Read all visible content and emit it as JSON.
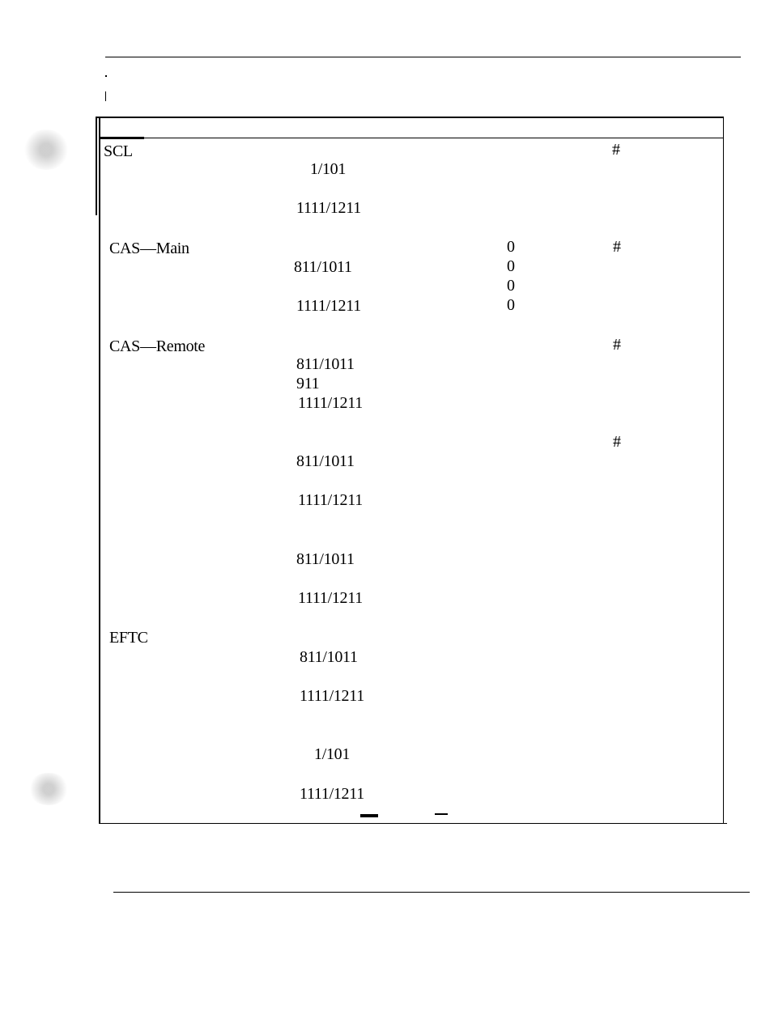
{
  "table": {
    "rows": [
      {
        "label": "SCL",
        "values": [
          "1/101",
          "1111/1211"
        ],
        "zeros": [],
        "hash": "#"
      },
      {
        "label": "CAS—Main",
        "values": [
          "811/1011",
          "1111/1211"
        ],
        "zeros": [
          "0",
          "0",
          "0",
          "0"
        ],
        "hash": "#"
      },
      {
        "label": "CAS—Remote",
        "values": [
          "811/1011",
          "911",
          "1111/1211"
        ],
        "zeros": [],
        "hash": "#"
      },
      {
        "label": "",
        "values": [
          "811/1011",
          "1111/1211"
        ],
        "zeros": [],
        "hash": "#"
      },
      {
        "label": "",
        "values": [
          "811/1011",
          "1111/1211"
        ],
        "zeros": [],
        "hash": ""
      },
      {
        "label": "EFTC",
        "values": [
          "811/1011",
          "1111/1211"
        ],
        "zeros": [],
        "hash": ""
      },
      {
        "label": "",
        "values": [
          "1/101",
          "1111/1211"
        ],
        "zeros": [],
        "hash": ""
      }
    ]
  }
}
